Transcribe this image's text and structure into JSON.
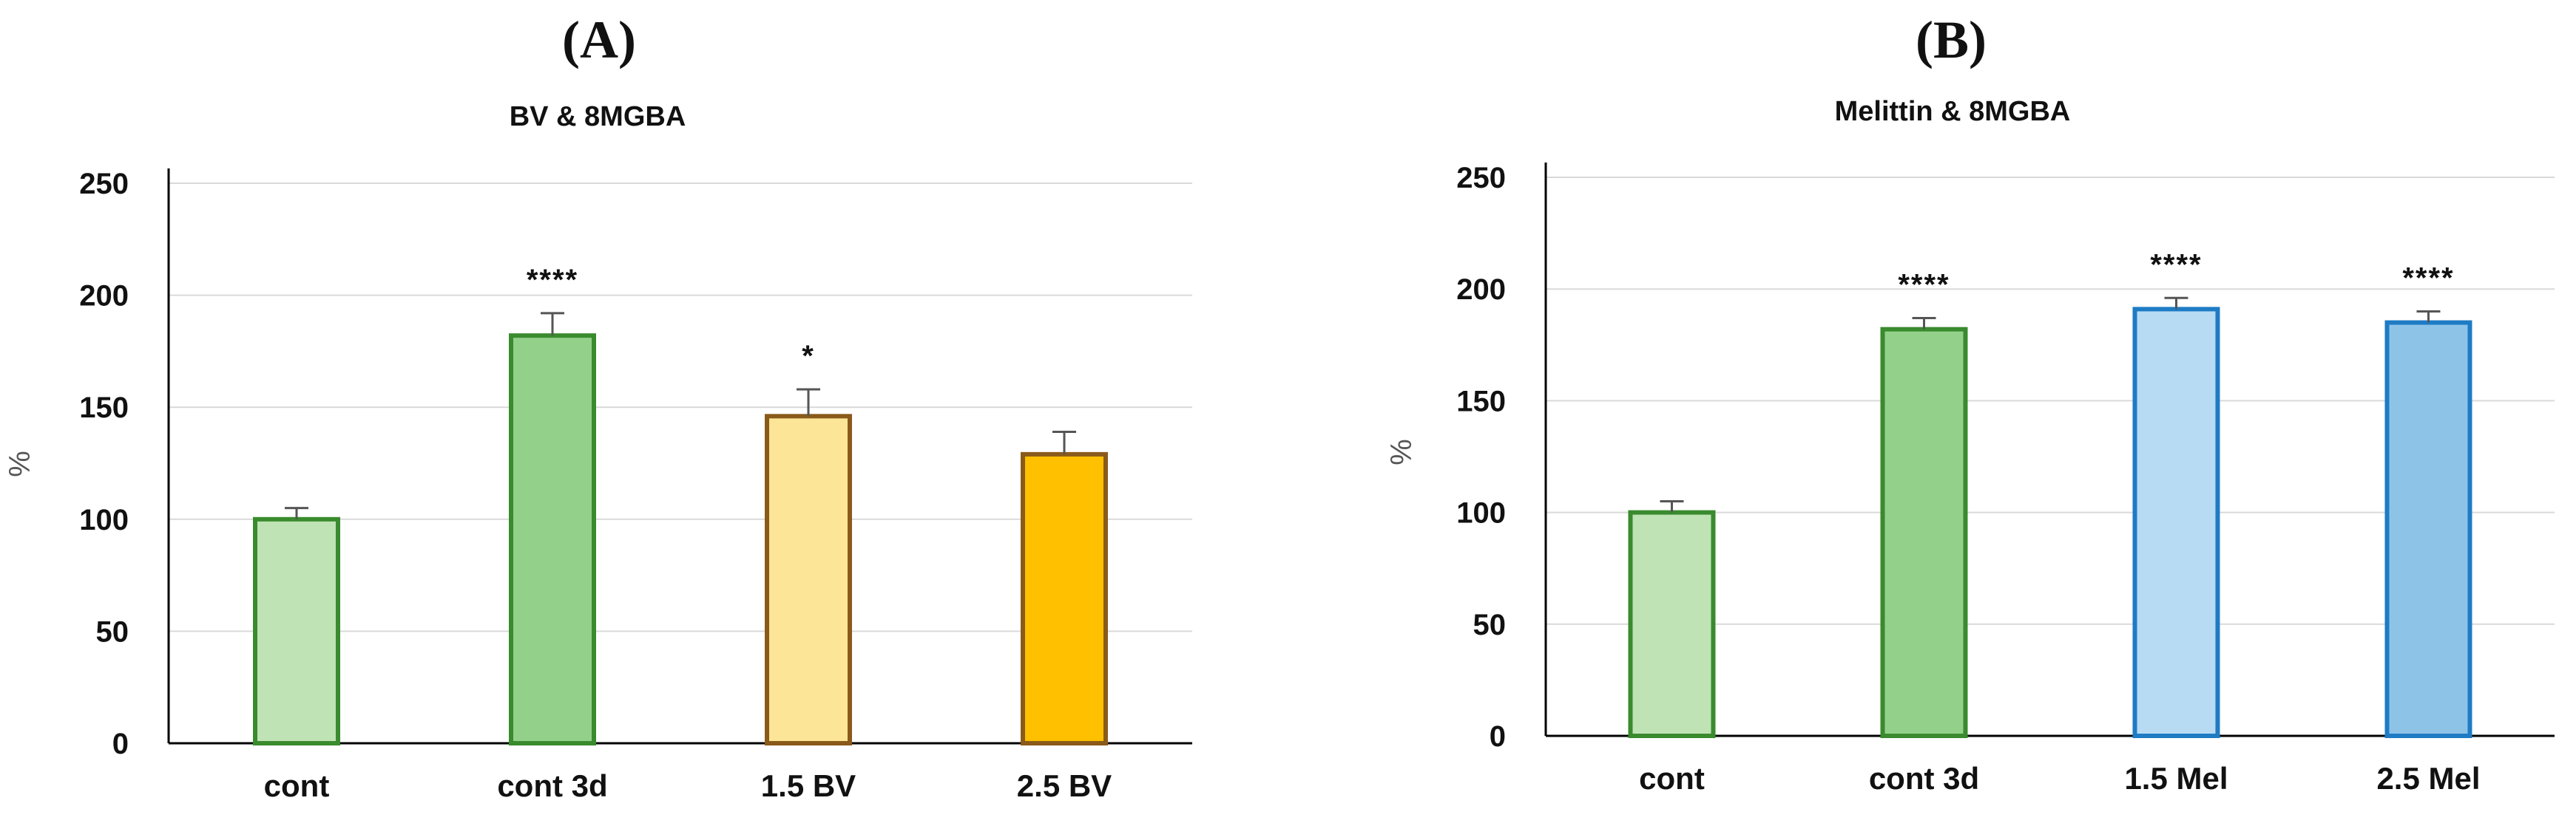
{
  "chart_data": [
    {
      "type": "bar",
      "panel_label": "(A)",
      "title": "BV & 8MGBA",
      "ylabel": "%",
      "ylim": [
        0,
        250
      ],
      "yticks": [
        0,
        50,
        100,
        150,
        200,
        250
      ],
      "grid": true,
      "categories": [
        "cont",
        "cont 3d",
        "1.5 BV",
        "2.5 BV"
      ],
      "values": [
        100,
        182,
        146,
        129
      ],
      "errors": [
        5,
        10,
        12,
        10
      ],
      "annotations": [
        "",
        "****",
        "*",
        ""
      ],
      "fill_colors": [
        "#bfe3b4",
        "#93d18a",
        "#fde597",
        "#ffc000"
      ],
      "edge_colors": [
        "#3a8a2e",
        "#3a8a2e",
        "#8a5a1a",
        "#8a5a1a"
      ]
    },
    {
      "type": "bar",
      "panel_label": "(B)",
      "title": "Melittin & 8MGBA",
      "ylabel": "%",
      "ylim": [
        0,
        250
      ],
      "yticks": [
        0,
        50,
        100,
        150,
        200,
        250
      ],
      "grid": true,
      "categories": [
        "cont",
        "cont 3d",
        "1.5 Mel",
        "2.5 Mel"
      ],
      "values": [
        100,
        182,
        191,
        185
      ],
      "errors": [
        5,
        5,
        5,
        5
      ],
      "annotations": [
        "",
        "****",
        "****",
        "****"
      ],
      "fill_colors": [
        "#bfe3b4",
        "#93d18a",
        "#b7dbf3",
        "#8ec3e8"
      ],
      "edge_colors": [
        "#3a8a2e",
        "#3a8a2e",
        "#1e7bc4",
        "#1e7bc4"
      ]
    }
  ]
}
